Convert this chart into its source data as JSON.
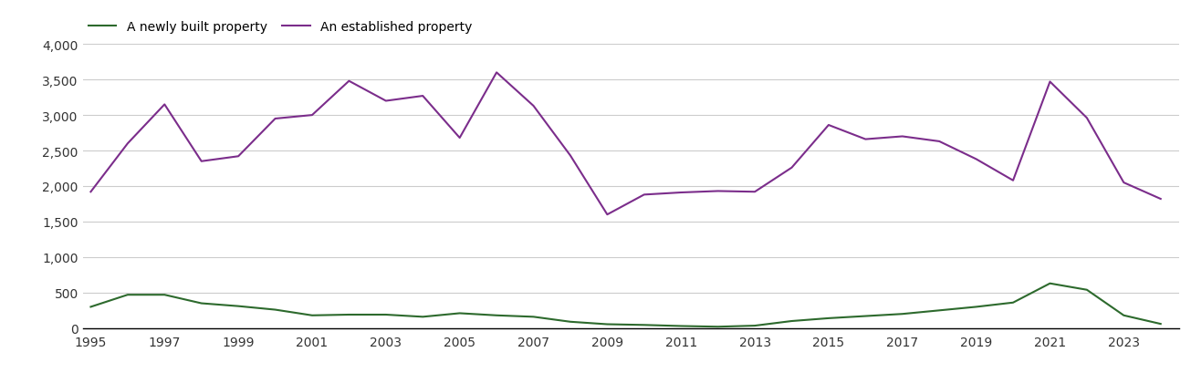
{
  "years": [
    1995,
    1996,
    1997,
    1998,
    1999,
    2000,
    2001,
    2002,
    2003,
    2004,
    2005,
    2006,
    2007,
    2008,
    2009,
    2010,
    2011,
    2012,
    2013,
    2014,
    2015,
    2016,
    2017,
    2018,
    2019,
    2020,
    2021,
    2022,
    2023,
    2024
  ],
  "newly_built": [
    300,
    470,
    470,
    350,
    310,
    260,
    180,
    190,
    190,
    160,
    210,
    180,
    160,
    90,
    55,
    45,
    30,
    20,
    35,
    100,
    140,
    170,
    200,
    250,
    300,
    360,
    630,
    540,
    180,
    60
  ],
  "established": [
    1920,
    2600,
    3150,
    2350,
    2420,
    2950,
    3000,
    3480,
    3200,
    3270,
    2680,
    3600,
    3130,
    2430,
    1600,
    1880,
    1910,
    1930,
    1920,
    2260,
    2860,
    2660,
    2700,
    2630,
    2380,
    2080,
    3470,
    2960,
    2050,
    1820
  ],
  "newly_built_color": "#2d6a2d",
  "established_color": "#7b2d8b",
  "newly_built_label": "A newly built property",
  "established_label": "An established property",
  "ylim": [
    0,
    4000
  ],
  "yticks": [
    0,
    500,
    1000,
    1500,
    2000,
    2500,
    3000,
    3500,
    4000
  ],
  "ytick_labels": [
    "0",
    "500",
    "1,000",
    "1,500",
    "2,000",
    "2,500",
    "3,000",
    "3,500",
    "4,000"
  ],
  "xticks": [
    1995,
    1997,
    1999,
    2001,
    2003,
    2005,
    2007,
    2009,
    2011,
    2013,
    2015,
    2017,
    2019,
    2021,
    2023
  ],
  "background_color": "#ffffff",
  "grid_color": "#cccccc",
  "line_width": 1.5,
  "legend_fontsize": 10,
  "tick_fontsize": 10,
  "xlim_left": 1994.8,
  "xlim_right": 2024.5
}
